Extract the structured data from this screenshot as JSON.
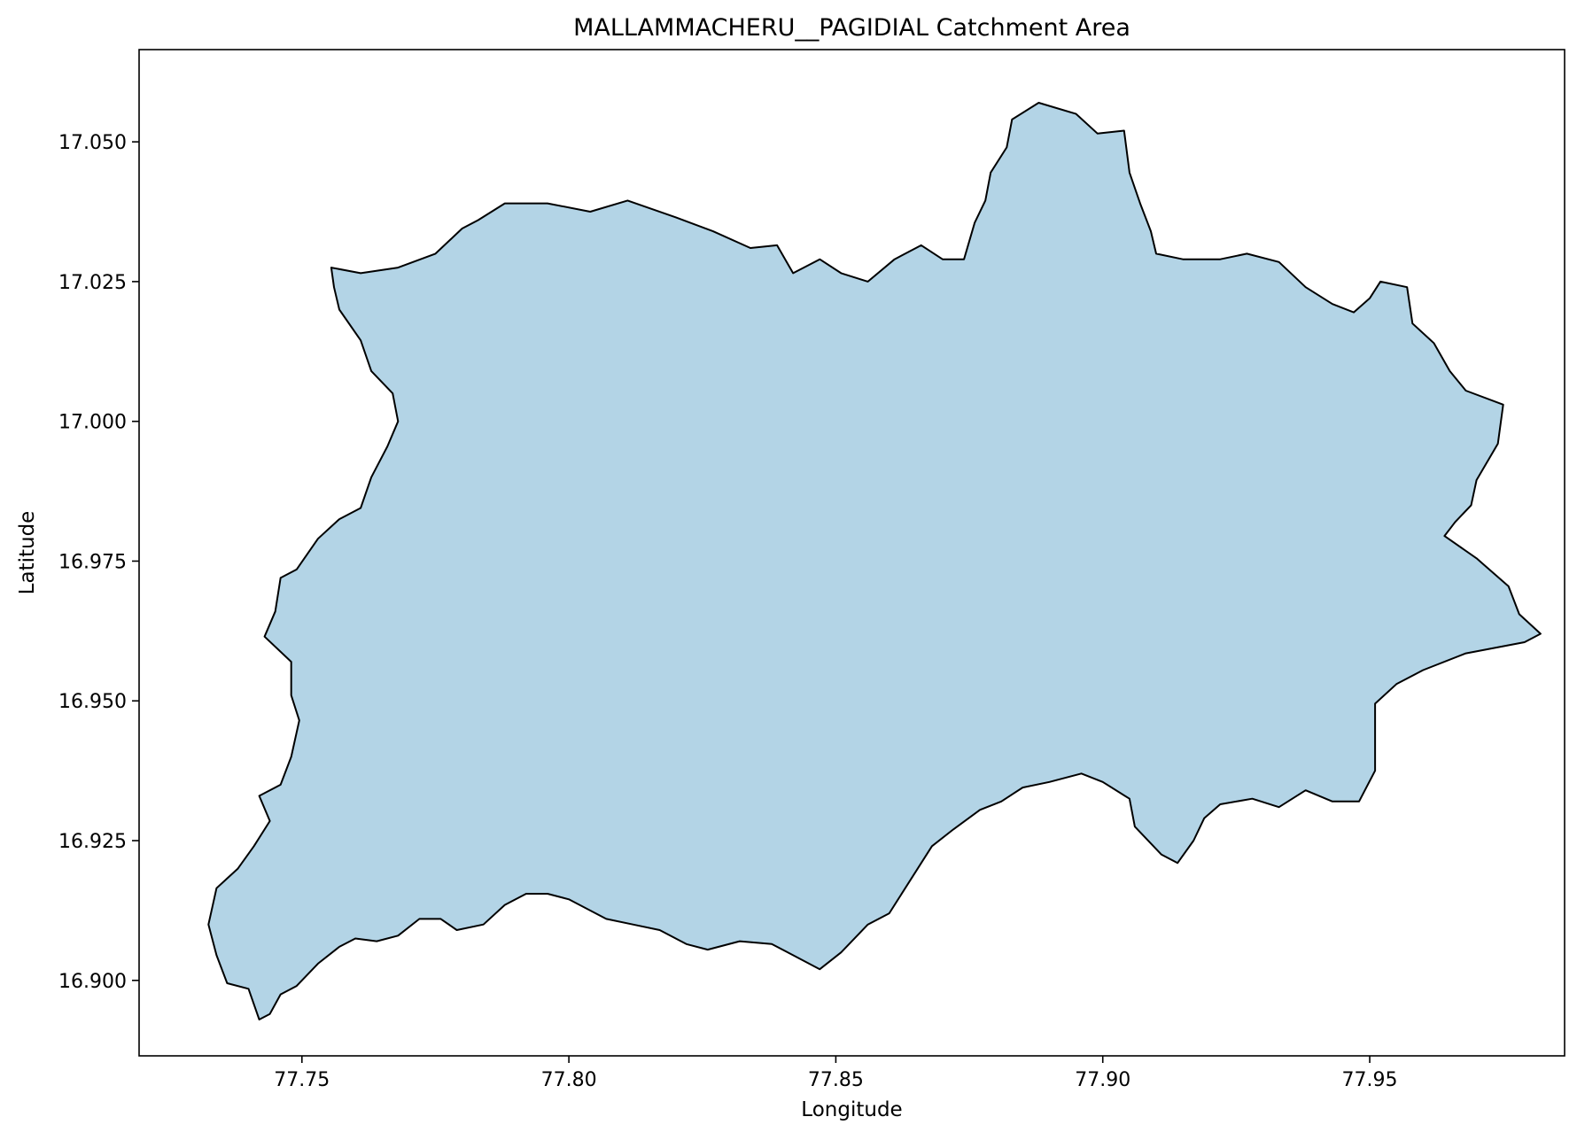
{
  "chart_data": {
    "type": "map",
    "title": "MALLAMMACHERU__PAGIDIAL Catchment Area",
    "xlabel": "Longitude",
    "ylabel": "Latitude",
    "xlim": [
      77.7195,
      77.9865
    ],
    "ylim": [
      16.8865,
      17.0665
    ],
    "xticks": [
      77.75,
      77.8,
      77.85,
      77.9,
      77.95
    ],
    "xtick_labels": [
      "77.75",
      "77.80",
      "77.85",
      "77.90",
      "77.95"
    ],
    "yticks": [
      16.9,
      16.925,
      16.95,
      16.975,
      17.0,
      17.025,
      17.05
    ],
    "ytick_labels": [
      "16.900",
      "16.925",
      "16.950",
      "16.975",
      "17.000",
      "17.025",
      "17.050"
    ],
    "grid": false,
    "fill_color": "#b3d4e6",
    "edge_color": "#000000",
    "boundary": [
      [
        77.7555,
        17.0275
      ],
      [
        77.761,
        17.0265
      ],
      [
        77.768,
        17.0275
      ],
      [
        77.775,
        17.03
      ],
      [
        77.78,
        17.0345
      ],
      [
        77.783,
        17.036
      ],
      [
        77.788,
        17.039
      ],
      [
        77.796,
        17.039
      ],
      [
        77.804,
        17.0375
      ],
      [
        77.811,
        17.0395
      ],
      [
        77.82,
        17.0365
      ],
      [
        77.827,
        17.034
      ],
      [
        77.834,
        17.031
      ],
      [
        77.839,
        17.0315
      ],
      [
        77.842,
        17.0265
      ],
      [
        77.847,
        17.029
      ],
      [
        77.851,
        17.0265
      ],
      [
        77.856,
        17.025
      ],
      [
        77.861,
        17.029
      ],
      [
        77.866,
        17.0315
      ],
      [
        77.87,
        17.029
      ],
      [
        77.874,
        17.029
      ],
      [
        77.876,
        17.0355
      ],
      [
        77.878,
        17.0395
      ],
      [
        77.879,
        17.0445
      ],
      [
        77.882,
        17.049
      ],
      [
        77.883,
        17.054
      ],
      [
        77.888,
        17.057
      ],
      [
        77.895,
        17.055
      ],
      [
        77.899,
        17.0515
      ],
      [
        77.904,
        17.052
      ],
      [
        77.905,
        17.0445
      ],
      [
        77.907,
        17.039
      ],
      [
        77.909,
        17.034
      ],
      [
        77.91,
        17.03
      ],
      [
        77.915,
        17.029
      ],
      [
        77.922,
        17.029
      ],
      [
        77.927,
        17.03
      ],
      [
        77.933,
        17.0285
      ],
      [
        77.938,
        17.024
      ],
      [
        77.943,
        17.021
      ],
      [
        77.947,
        17.0195
      ],
      [
        77.95,
        17.022
      ],
      [
        77.952,
        17.025
      ],
      [
        77.957,
        17.024
      ],
      [
        77.958,
        17.0175
      ],
      [
        77.962,
        17.014
      ],
      [
        77.965,
        17.009
      ],
      [
        77.968,
        17.0055
      ],
      [
        77.975,
        17.003
      ],
      [
        77.974,
        16.996
      ],
      [
        77.97,
        16.9895
      ],
      [
        77.969,
        16.985
      ],
      [
        77.966,
        16.982
      ],
      [
        77.964,
        16.9795
      ],
      [
        77.97,
        16.9755
      ],
      [
        77.976,
        16.9705
      ],
      [
        77.978,
        16.9655
      ],
      [
        77.982,
        16.962
      ],
      [
        77.979,
        16.9605
      ],
      [
        77.968,
        16.9585
      ],
      [
        77.96,
        16.9555
      ],
      [
        77.955,
        16.953
      ],
      [
        77.951,
        16.9495
      ],
      [
        77.951,
        16.9435
      ],
      [
        77.951,
        16.9375
      ],
      [
        77.948,
        16.932
      ],
      [
        77.943,
        16.932
      ],
      [
        77.938,
        16.934
      ],
      [
        77.933,
        16.931
      ],
      [
        77.928,
        16.9325
      ],
      [
        77.922,
        16.9315
      ],
      [
        77.919,
        16.929
      ],
      [
        77.917,
        16.925
      ],
      [
        77.914,
        16.921
      ],
      [
        77.911,
        16.9225
      ],
      [
        77.906,
        16.9275
      ],
      [
        77.905,
        16.9325
      ],
      [
        77.9,
        16.9355
      ],
      [
        77.896,
        16.937
      ],
      [
        77.89,
        16.9355
      ],
      [
        77.885,
        16.9345
      ],
      [
        77.881,
        16.932
      ],
      [
        77.877,
        16.9305
      ],
      [
        77.872,
        16.927
      ],
      [
        77.868,
        16.924
      ],
      [
        77.864,
        16.918
      ],
      [
        77.86,
        16.912
      ],
      [
        77.856,
        16.91
      ],
      [
        77.851,
        16.905
      ],
      [
        77.847,
        16.902
      ],
      [
        77.842,
        16.9045
      ],
      [
        77.838,
        16.9065
      ],
      [
        77.832,
        16.907
      ],
      [
        77.826,
        16.9055
      ],
      [
        77.822,
        16.9065
      ],
      [
        77.817,
        16.909
      ],
      [
        77.812,
        16.91
      ],
      [
        77.807,
        16.911
      ],
      [
        77.8,
        16.9145
      ],
      [
        77.796,
        16.9155
      ],
      [
        77.792,
        16.9155
      ],
      [
        77.788,
        16.9135
      ],
      [
        77.784,
        16.91
      ],
      [
        77.779,
        16.909
      ],
      [
        77.776,
        16.911
      ],
      [
        77.772,
        16.911
      ],
      [
        77.768,
        16.908
      ],
      [
        77.764,
        16.907
      ],
      [
        77.76,
        16.9075
      ],
      [
        77.757,
        16.906
      ],
      [
        77.753,
        16.903
      ],
      [
        77.749,
        16.899
      ],
      [
        77.746,
        16.8975
      ],
      [
        77.744,
        16.894
      ],
      [
        77.742,
        16.893
      ],
      [
        77.74,
        16.8985
      ],
      [
        77.736,
        16.8995
      ],
      [
        77.734,
        16.9045
      ],
      [
        77.7325,
        16.91
      ],
      [
        77.734,
        16.9165
      ],
      [
        77.738,
        16.92
      ],
      [
        77.741,
        16.924
      ],
      [
        77.744,
        16.9285
      ],
      [
        77.742,
        16.933
      ],
      [
        77.746,
        16.935
      ],
      [
        77.748,
        16.94
      ],
      [
        77.7495,
        16.9465
      ],
      [
        77.748,
        16.951
      ],
      [
        77.748,
        16.957
      ],
      [
        77.743,
        16.9615
      ],
      [
        77.745,
        16.966
      ],
      [
        77.746,
        16.972
      ],
      [
        77.749,
        16.9735
      ],
      [
        77.753,
        16.979
      ],
      [
        77.757,
        16.9825
      ],
      [
        77.761,
        16.9845
      ],
      [
        77.763,
        16.99
      ],
      [
        77.766,
        16.9955
      ],
      [
        77.768,
        17.0
      ],
      [
        77.767,
        17.005
      ],
      [
        77.763,
        17.009
      ],
      [
        77.761,
        17.0145
      ],
      [
        77.757,
        17.02
      ],
      [
        77.756,
        17.024
      ]
    ]
  }
}
